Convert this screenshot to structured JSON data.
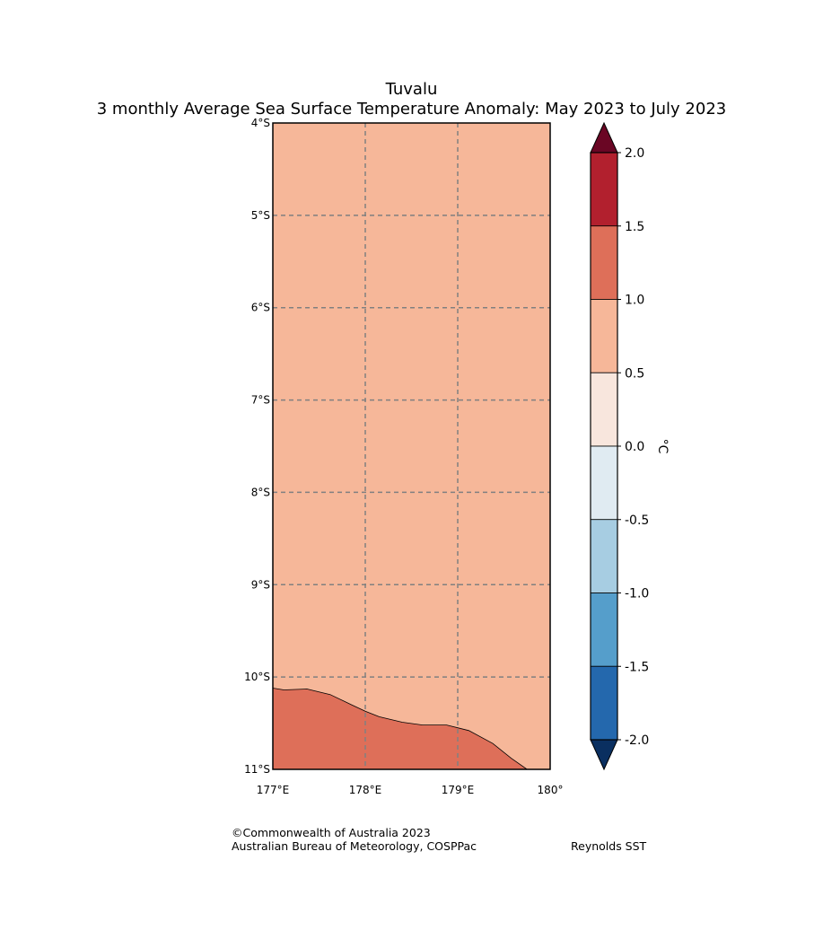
{
  "title": {
    "line1": "Tuvalu",
    "line2": "3 monthly Average Sea Surface Temperature Anomaly: May 2023 to July 2023"
  },
  "map": {
    "lat_labels": [
      "4°S",
      "5°S",
      "6°S",
      "7°S",
      "8°S",
      "9°S",
      "10°S",
      "11°S"
    ],
    "lon_labels": [
      "177°E",
      "178°E",
      "179°E",
      "180°"
    ],
    "lat_range": [
      -11,
      -4
    ],
    "lon_range": [
      177,
      180
    ],
    "background_fill": "#f6b799",
    "warm_fill": "#de6f59",
    "grid_color": "#808080",
    "contour_1_0": [
      [
        177.0,
        -10.12
      ],
      [
        177.12,
        -10.14
      ],
      [
        177.37,
        -10.13
      ],
      [
        177.62,
        -10.19
      ],
      [
        177.85,
        -10.3
      ],
      [
        178.0,
        -10.37
      ],
      [
        178.15,
        -10.43
      ],
      [
        178.4,
        -10.49
      ],
      [
        178.62,
        -10.52
      ],
      [
        178.88,
        -10.52
      ],
      [
        179.12,
        -10.58
      ],
      [
        179.38,
        -10.72
      ],
      [
        179.58,
        -10.88
      ],
      [
        179.75,
        -11.0
      ]
    ]
  },
  "colorbar": {
    "unit_label": "°C",
    "tick_labels": [
      "2.0",
      "1.5",
      "1.0",
      "0.5",
      "0.0",
      "-0.5",
      "-1.0",
      "-1.5",
      "-2.0"
    ],
    "bins": [
      {
        "from": 1.5,
        "to": 2.0,
        "color": "#b2202e"
      },
      {
        "from": 1.0,
        "to": 1.5,
        "color": "#de6f59"
      },
      {
        "from": 0.5,
        "to": 1.0,
        "color": "#f6b799"
      },
      {
        "from": 0.0,
        "to": 0.5,
        "color": "#f8e6dd"
      },
      {
        "from": -0.5,
        "to": 0.0,
        "color": "#e0ebf2"
      },
      {
        "from": -1.0,
        "to": -0.5,
        "color": "#a7cde2"
      },
      {
        "from": -1.5,
        "to": -1.0,
        "color": "#559ecb"
      },
      {
        "from": -2.0,
        "to": -1.5,
        "color": "#2468ad"
      }
    ],
    "over_color": "#6a0624",
    "under_color": "#0a2f60"
  },
  "credits": {
    "copyright": "©Commonwealth of Australia 2023",
    "agency": "Australian Bureau of Meteorology, COSPPac",
    "dataset": "Reynolds SST"
  }
}
